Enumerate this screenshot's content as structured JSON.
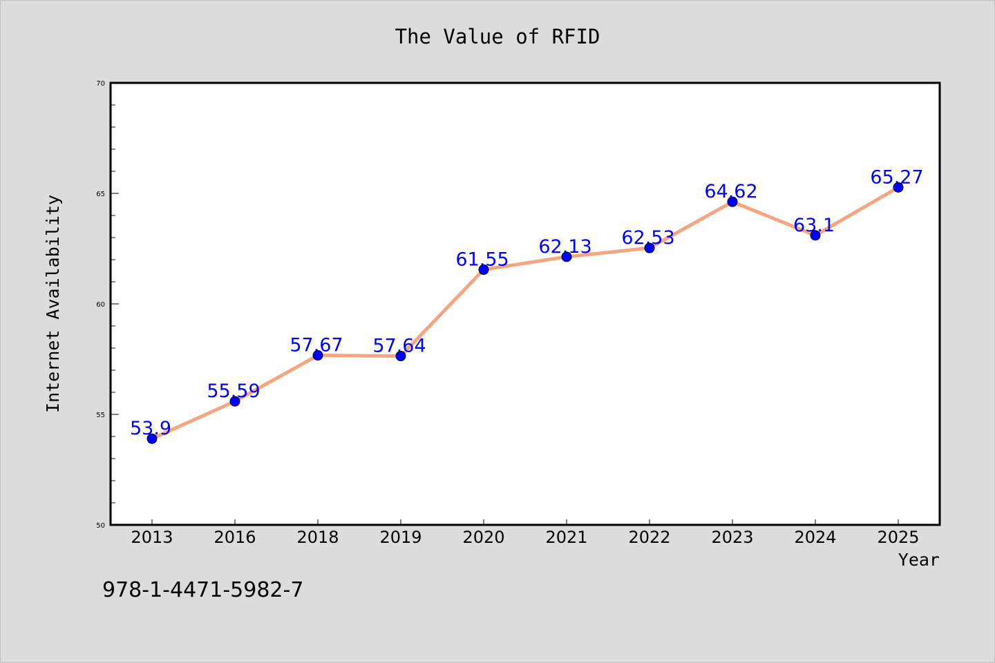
{
  "chart_data": {
    "type": "line",
    "title": "The Value of RFID",
    "xlabel": "Year",
    "ylabel": "Internet Availability",
    "categories": [
      "2013",
      "2016",
      "2018",
      "2019",
      "2020",
      "2021",
      "2022",
      "2023",
      "2024",
      "2025"
    ],
    "series": [
      {
        "values": [
          53.9,
          55.59,
          57.67,
          57.64,
          61.55,
          62.13,
          62.53,
          64.62,
          63.1,
          65.27
        ],
        "data_labels": [
          "53.9",
          "55.59",
          "57.67",
          "57.64",
          "61.55",
          "62.13",
          "62.53",
          "64.62",
          "63.1",
          "65.27"
        ]
      }
    ],
    "ylim": [
      50,
      70
    ],
    "yticks": [
      50,
      55,
      60,
      65,
      70
    ],
    "grid": false,
    "colors": {
      "line": "#f4a582",
      "marker": "#0000ff",
      "label": "#0000ff",
      "background": "#dcdcdc",
      "plot_background": "#ffffff"
    }
  },
  "footer": {
    "isbn": "978-1-4471-5982-7"
  }
}
